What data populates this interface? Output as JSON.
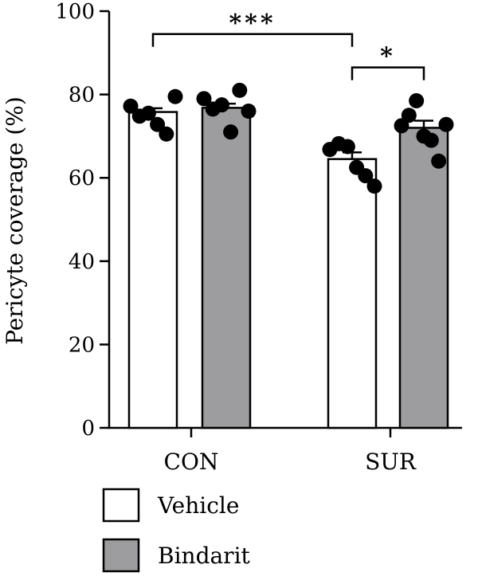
{
  "chart_data": {
    "type": "bar",
    "ylabel": "Pericyte coverage (%)",
    "ylim": [
      0,
      100
    ],
    "yticks": [
      0,
      20,
      40,
      60,
      80,
      100
    ],
    "categories": [
      "CON",
      "SUR"
    ],
    "series": [
      {
        "name": "Vehicle",
        "color": "#ffffff",
        "values": [
          75.8,
          64.5
        ],
        "error": [
          0.9,
          1.6
        ],
        "points": [
          [
            77.2,
            74.8,
            75.5,
            72.8,
            70.5,
            79.5
          ],
          [
            66.8,
            68.2,
            67.5,
            62.5,
            60.5,
            58.0
          ]
        ]
      },
      {
        "name": "Bindarit",
        "color": "#9d9d9f",
        "values": [
          76.8,
          72.0
        ],
        "error": [
          1.0,
          1.7
        ],
        "points": [
          [
            79.0,
            76.5,
            77.5,
            71.0,
            81.0,
            76.0
          ],
          [
            72.5,
            75.0,
            78.5,
            70.0,
            69.0,
            64.0,
            72.8
          ]
        ]
      }
    ],
    "significance": [
      {
        "label": "***",
        "from": [
          0,
          0
        ],
        "to": [
          1,
          0
        ],
        "y": 94.5
      },
      {
        "label": "*",
        "from": [
          1,
          0
        ],
        "to": [
          1,
          1
        ],
        "y": 86.5
      }
    ],
    "legend_position": "bottom-left"
  }
}
